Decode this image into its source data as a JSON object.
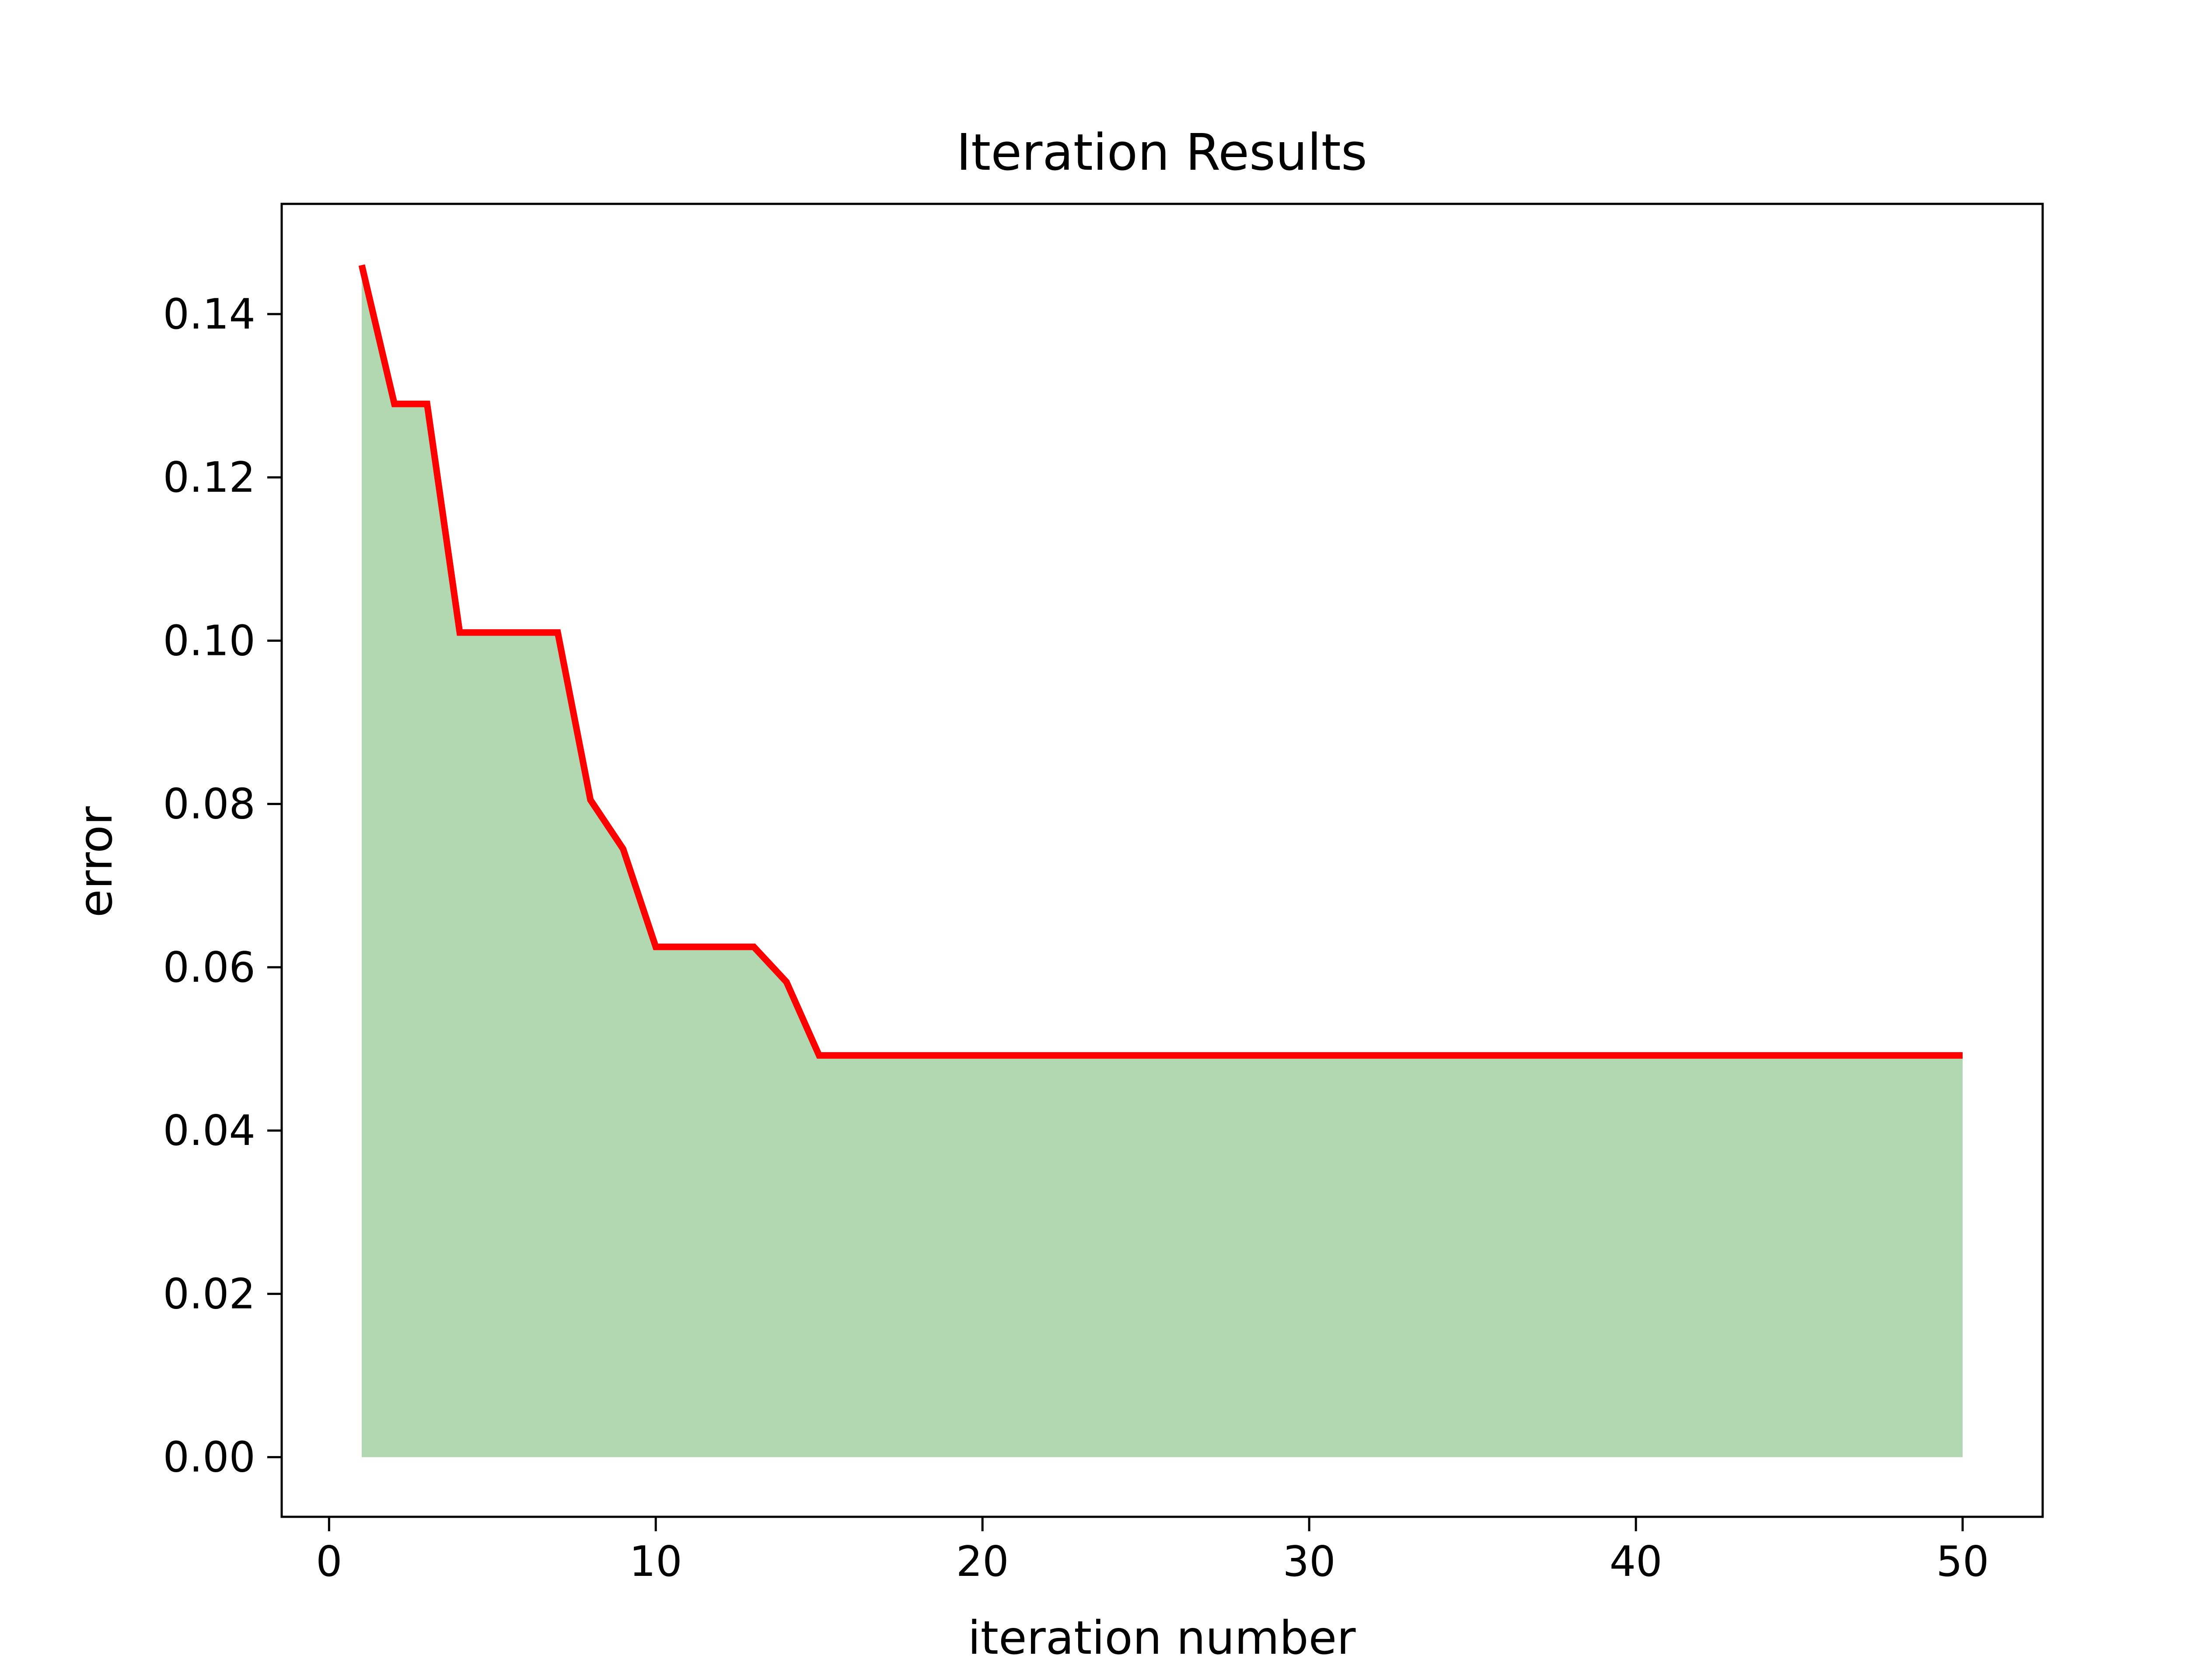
{
  "chart_data": {
    "type": "area",
    "title": "Iteration Results",
    "xlabel": "iteration number",
    "ylabel": "error",
    "xlim": [
      -1.45,
      52.45
    ],
    "ylim": [
      -0.00731,
      0.1535
    ],
    "xticks": [
      0,
      10,
      20,
      30,
      40,
      50
    ],
    "xtick_labels": [
      "0",
      "10",
      "20",
      "30",
      "40",
      "50"
    ],
    "yticks": [
      0.0,
      0.02,
      0.04,
      0.06,
      0.08,
      0.1,
      0.12,
      0.14
    ],
    "ytick_labels": [
      "0.00",
      "0.02",
      "0.04",
      "0.06",
      "0.08",
      "0.10",
      "0.12",
      "0.14"
    ],
    "grid": false,
    "legend": null,
    "x": [
      1,
      2,
      3,
      4,
      5,
      6,
      7,
      8,
      9,
      10,
      11,
      12,
      13,
      14,
      15,
      16,
      17,
      18,
      19,
      20,
      21,
      22,
      23,
      24,
      25,
      26,
      27,
      28,
      29,
      30,
      31,
      32,
      33,
      34,
      35,
      36,
      37,
      38,
      39,
      40,
      41,
      42,
      43,
      44,
      45,
      46,
      47,
      48,
      49,
      50
    ],
    "series": [
      {
        "name": "error",
        "line_color": "#ff0000",
        "fill_color": "#b2d8b2",
        "values": [
          0.146,
          0.129,
          0.129,
          0.101,
          0.101,
          0.101,
          0.101,
          0.0805,
          0.0745,
          0.0625,
          0.0625,
          0.0625,
          0.0625,
          0.0582,
          0.0492,
          0.0492,
          0.0492,
          0.0492,
          0.0492,
          0.0492,
          0.0492,
          0.0492,
          0.0492,
          0.0492,
          0.0492,
          0.0492,
          0.0492,
          0.0492,
          0.0492,
          0.0492,
          0.0492,
          0.0492,
          0.0492,
          0.0492,
          0.0492,
          0.0492,
          0.0492,
          0.0492,
          0.0492,
          0.0492,
          0.0492,
          0.0492,
          0.0492,
          0.0492,
          0.0492,
          0.0492,
          0.0492,
          0.0492,
          0.0492,
          0.0492
        ]
      }
    ]
  }
}
